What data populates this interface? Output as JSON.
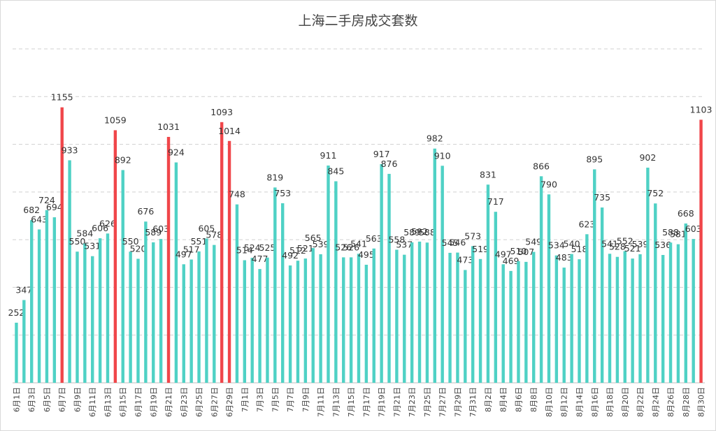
{
  "chart_data": {
    "type": "bar",
    "title": "上海二手房成交套数",
    "categories": [
      "6月1日",
      null,
      "6月3日",
      null,
      "6月5日",
      null,
      "6月7日",
      null,
      "6月9日",
      null,
      "6月11日",
      null,
      "6月13日",
      null,
      "6月15日",
      null,
      "6月17日",
      null,
      "6月19日",
      null,
      "6月21日",
      null,
      "6月23日",
      null,
      "6月25日",
      null,
      "6月27日",
      null,
      "6月29日",
      null,
      "7月1日",
      null,
      "7月3日",
      null,
      "7月5日",
      null,
      "7月7日",
      null,
      "7月9日",
      null,
      "7月11日",
      null,
      "7月13日",
      null,
      "7月15日",
      null,
      "7月17日",
      null,
      "7月19日",
      null,
      "7月21日",
      null,
      "7月23日",
      null,
      "7月25日",
      null,
      "7月27日",
      null,
      "7月29日",
      null,
      "7月31日",
      null,
      "8月2日",
      null,
      "8月4日",
      null,
      "8月6日",
      null,
      "8月8日",
      null,
      "8月10日",
      null,
      "8月12日",
      null,
      "8月14日",
      null,
      "8月16日",
      null,
      "8月18日",
      null,
      "8月20日",
      null,
      "8月22日",
      null,
      "8月24日",
      null,
      "8月26日",
      null,
      "8月28日",
      null,
      "8月30日"
    ],
    "values": [
      252,
      347,
      682,
      643,
      724,
      694,
      1155,
      933,
      550,
      584,
      531,
      606,
      626,
      1059,
      892,
      550,
      520,
      676,
      589,
      603,
      1031,
      924,
      497,
      517,
      551,
      605,
      578,
      1093,
      1014,
      748,
      514,
      524,
      477,
      525,
      819,
      753,
      492,
      512,
      521,
      565,
      539,
      911,
      845,
      526,
      526,
      541,
      495,
      563,
      917,
      876,
      558,
      537,
      589,
      592,
      588,
      982,
      910,
      545,
      546,
      473,
      573,
      519,
      831,
      717,
      497,
      469,
      510,
      507,
      549,
      866,
      790,
      534,
      483,
      540,
      518,
      623,
      895,
      735,
      541,
      528,
      552,
      521,
      539,
      902,
      752,
      536,
      588,
      581,
      668,
      603,
      1103
    ],
    "color": "#4fd1c5",
    "highlight_color": "#f0464a",
    "highlighted": [
      6,
      13,
      20,
      27,
      28,
      90
    ],
    "ylim": [
      0,
      1400
    ],
    "ygrid": [
      200,
      400,
      600,
      800,
      1000,
      1200,
      1400
    ],
    "grid": true
  }
}
